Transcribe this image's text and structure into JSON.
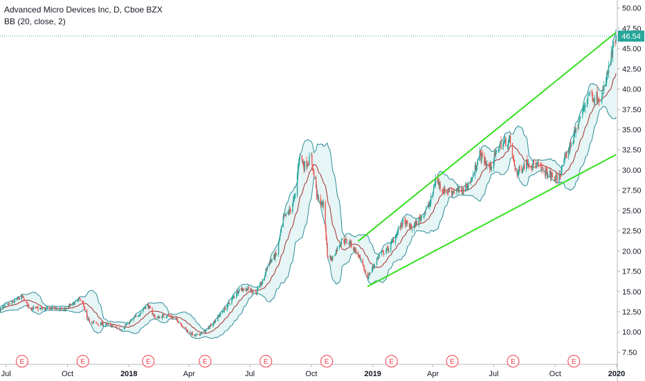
{
  "legend": {
    "title": "Advanced Micro Devices Inc, D, Cboe BZX",
    "indicator": "BB (20, close, 2)"
  },
  "colors": {
    "up": "#26a69a",
    "down": "#ef5350",
    "band_line": "#2a8a99",
    "band_fill": "#d5efee",
    "basis": "#a52a2a",
    "channel": "#33e01c",
    "last_price": "#26a69a",
    "earnings": "#f23645"
  },
  "chart_data": {
    "type": "candlestick",
    "title": "Advanced Micro Devices Inc, D, Cboe BZX",
    "ylim": [
      6.0,
      51.0
    ],
    "y_ticks": [
      "7.50",
      "10.00",
      "12.50",
      "15.00",
      "17.50",
      "20.00",
      "22.50",
      "25.00",
      "27.50",
      "30.00",
      "32.50",
      "35.00",
      "37.50",
      "40.00",
      "42.50",
      "45.00",
      "47.50",
      "50.00"
    ],
    "x_ticks": [
      {
        "label": "Jul",
        "date": "2017-07-01"
      },
      {
        "label": "Oct",
        "date": "2017-10-01"
      },
      {
        "label": "2018",
        "date": "2018-01-01",
        "bold": true
      },
      {
        "label": "Apr",
        "date": "2018-04-01"
      },
      {
        "label": "Jul",
        "date": "2018-07-01"
      },
      {
        "label": "Oct",
        "date": "2018-10-01"
      },
      {
        "label": "2019",
        "date": "2019-01-01",
        "bold": true
      },
      {
        "label": "Apr",
        "date": "2019-04-01"
      },
      {
        "label": "Jul",
        "date": "2019-07-01"
      },
      {
        "label": "Oct",
        "date": "2019-10-01"
      },
      {
        "label": "2020",
        "date": "2020-01-01",
        "bold": true
      }
    ],
    "x_range": [
      "2017-06-22",
      "2020-01-02"
    ],
    "price_path": [
      [
        "2017-06-22",
        12.8
      ],
      [
        "2017-07-10",
        13.6
      ],
      [
        "2017-07-25",
        14.4
      ],
      [
        "2017-08-05",
        13.0
      ],
      [
        "2017-08-25",
        12.8
      ],
      [
        "2017-09-10",
        13.0
      ],
      [
        "2017-09-25",
        12.7
      ],
      [
        "2017-10-10",
        13.5
      ],
      [
        "2017-10-22",
        14.2
      ],
      [
        "2017-10-30",
        11.5
      ],
      [
        "2017-11-15",
        11.0
      ],
      [
        "2017-12-01",
        10.9
      ],
      [
        "2017-12-20",
        10.3
      ],
      [
        "2018-01-03",
        11.3
      ],
      [
        "2018-01-15",
        12.1
      ],
      [
        "2018-01-28",
        13.4
      ],
      [
        "2018-02-10",
        11.7
      ],
      [
        "2018-02-28",
        12.1
      ],
      [
        "2018-03-15",
        11.4
      ],
      [
        "2018-03-30",
        10.1
      ],
      [
        "2018-04-10",
        9.5
      ],
      [
        "2018-04-25",
        10.1
      ],
      [
        "2018-05-10",
        11.4
      ],
      [
        "2018-05-28",
        13.2
      ],
      [
        "2018-06-15",
        15.3
      ],
      [
        "2018-06-28",
        15.3
      ],
      [
        "2018-07-10",
        14.9
      ],
      [
        "2018-07-20",
        16.2
      ],
      [
        "2018-07-28",
        18.4
      ],
      [
        "2018-08-10",
        19.6
      ],
      [
        "2018-08-20",
        24.0
      ],
      [
        "2018-08-30",
        25.0
      ],
      [
        "2018-09-07",
        26.8
      ],
      [
        "2018-09-13",
        32.0
      ],
      [
        "2018-09-20",
        30.5
      ],
      [
        "2018-10-01",
        31.5
      ],
      [
        "2018-10-10",
        26.5
      ],
      [
        "2018-10-20",
        25.5
      ],
      [
        "2018-10-25",
        19.5
      ],
      [
        "2018-11-01",
        19.0
      ],
      [
        "2018-11-15",
        21.4
      ],
      [
        "2018-11-28",
        21.0
      ],
      [
        "2018-12-10",
        19.5
      ],
      [
        "2018-12-24",
        16.7
      ],
      [
        "2019-01-10",
        19.4
      ],
      [
        "2019-01-25",
        20.3
      ],
      [
        "2019-02-15",
        23.6
      ],
      [
        "2019-03-01",
        22.8
      ],
      [
        "2019-03-15",
        24.3
      ],
      [
        "2019-03-28",
        25.9
      ],
      [
        "2019-04-05",
        28.9
      ],
      [
        "2019-04-18",
        27.4
      ],
      [
        "2019-05-01",
        27.4
      ],
      [
        "2019-05-15",
        27.5
      ],
      [
        "2019-05-28",
        28.6
      ],
      [
        "2019-06-10",
        32.0
      ],
      [
        "2019-06-25",
        30.2
      ],
      [
        "2019-07-10",
        33.1
      ],
      [
        "2019-07-25",
        33.7
      ],
      [
        "2019-08-03",
        29.5
      ],
      [
        "2019-08-20",
        31.0
      ],
      [
        "2019-09-05",
        30.5
      ],
      [
        "2019-09-20",
        29.5
      ],
      [
        "2019-10-05",
        28.8
      ],
      [
        "2019-10-15",
        31.2
      ],
      [
        "2019-10-28",
        34.0
      ],
      [
        "2019-11-08",
        36.5
      ],
      [
        "2019-11-20",
        39.5
      ],
      [
        "2019-11-28",
        39.0
      ],
      [
        "2019-12-10",
        39.0
      ],
      [
        "2019-12-20",
        42.5
      ],
      [
        "2019-12-31",
        46.54
      ]
    ],
    "last_price": "46.54",
    "earnings_label": "E",
    "earnings_dates": [
      "2017-07-25",
      "2017-10-24",
      "2018-01-30",
      "2018-04-25",
      "2018-07-25",
      "2018-10-24",
      "2019-01-29",
      "2019-04-30",
      "2019-07-30",
      "2019-10-29"
    ],
    "channel_lines": [
      {
        "from": [
          "2018-12-10",
          21.2
        ],
        "to": [
          "2019-12-31",
          47.0
        ]
      },
      {
        "from": [
          "2018-12-24",
          15.6
        ],
        "to": [
          "2019-12-31",
          31.9
        ]
      }
    ]
  }
}
